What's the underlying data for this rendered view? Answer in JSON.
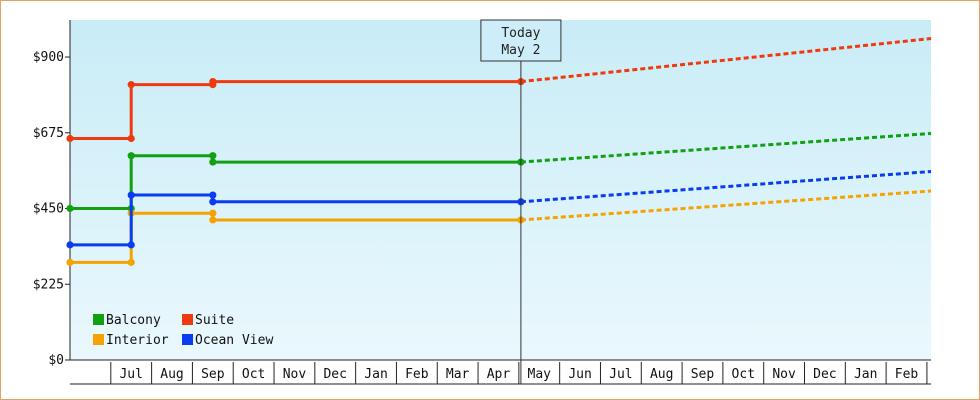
{
  "chart_data": {
    "type": "line",
    "title": "",
    "xlabel": "",
    "ylabel": "",
    "ylim": [
      0,
      1010
    ],
    "y_ticks": [
      {
        "value": 0,
        "label": "$0"
      },
      {
        "value": 225,
        "label": "$225"
      },
      {
        "value": 450,
        "label": "$450"
      },
      {
        "value": 675,
        "label": "$675"
      },
      {
        "value": 900,
        "label": "$900"
      }
    ],
    "x_axis_months": [
      "Jul",
      "Aug",
      "Sep",
      "Oct",
      "Nov",
      "Dec",
      "Jan",
      "Feb",
      "Mar",
      "Apr",
      "May",
      "Jun",
      "Jul",
      "Aug",
      "Sep",
      "Oct",
      "Nov",
      "Dec",
      "Jan",
      "Feb"
    ],
    "x_unit": "months from start of June",
    "xlim": [
      0,
      21.1
    ],
    "marker": {
      "line1": "Today",
      "line2": "May 2",
      "x": 11.05
    },
    "grid": false,
    "legend_position": "bottom-left",
    "series": [
      {
        "name": "Balcony",
        "color": "#11a011",
        "steps": [
          [
            0,
            450
          ],
          [
            1.5,
            450
          ],
          [
            1.5,
            607
          ],
          [
            3.5,
            607
          ],
          [
            3.5,
            588
          ],
          [
            11.05,
            588
          ]
        ],
        "markers": [
          [
            0,
            450
          ],
          [
            1.5,
            450
          ],
          [
            1.5,
            607
          ],
          [
            3.5,
            607
          ],
          [
            3.5,
            588
          ],
          [
            11.05,
            588
          ]
        ],
        "forecast": [
          [
            11.05,
            588
          ],
          [
            21.1,
            673
          ]
        ]
      },
      {
        "name": "Suite",
        "color": "#ee3a0e",
        "steps": [
          [
            0,
            658
          ],
          [
            1.5,
            658
          ],
          [
            1.5,
            818
          ],
          [
            3.5,
            818
          ],
          [
            3.5,
            827
          ],
          [
            11.05,
            827
          ]
        ],
        "markers": [
          [
            0,
            658
          ],
          [
            1.5,
            658
          ],
          [
            1.5,
            818
          ],
          [
            3.5,
            818
          ],
          [
            3.5,
            827
          ],
          [
            11.05,
            827
          ]
        ],
        "forecast": [
          [
            11.05,
            827
          ],
          [
            21.1,
            955
          ]
        ]
      },
      {
        "name": "Interior",
        "color": "#f5a300",
        "steps": [
          [
            0,
            290
          ],
          [
            1.5,
            290
          ],
          [
            1.5,
            436
          ],
          [
            3.5,
            436
          ],
          [
            3.5,
            416
          ],
          [
            11.05,
            416
          ]
        ],
        "markers": [
          [
            0,
            290
          ],
          [
            1.5,
            290
          ],
          [
            1.5,
            436
          ],
          [
            3.5,
            436
          ],
          [
            3.5,
            416
          ],
          [
            11.05,
            416
          ]
        ],
        "forecast": [
          [
            11.05,
            416
          ],
          [
            21.1,
            502
          ]
        ]
      },
      {
        "name": "Ocean View",
        "color": "#0a3cf0",
        "steps": [
          [
            0,
            342
          ],
          [
            1.5,
            342
          ],
          [
            1.5,
            490
          ],
          [
            3.5,
            490
          ],
          [
            3.5,
            470
          ],
          [
            11.05,
            470
          ]
        ],
        "markers": [
          [
            0,
            342
          ],
          [
            1.5,
            342
          ],
          [
            1.5,
            490
          ],
          [
            3.5,
            490
          ],
          [
            3.5,
            470
          ],
          [
            11.05,
            470
          ]
        ],
        "forecast": [
          [
            11.05,
            470
          ],
          [
            21.1,
            560
          ]
        ]
      }
    ]
  }
}
